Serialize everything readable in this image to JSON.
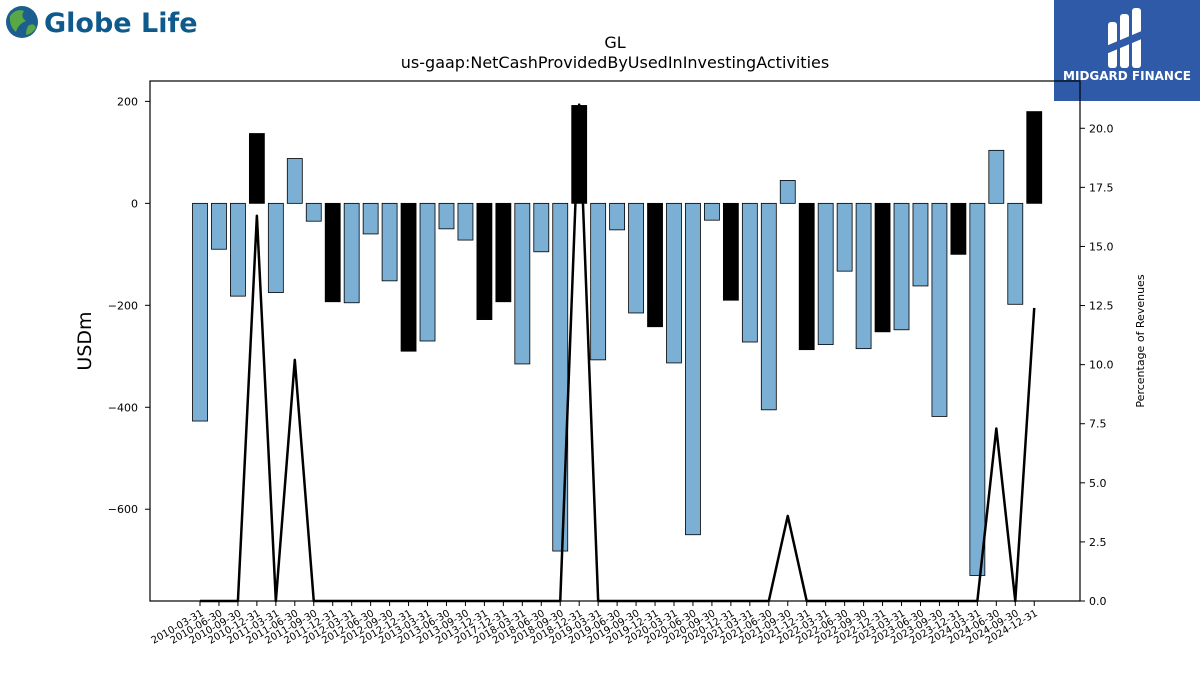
{
  "brand": {
    "company_name": "Globe Life",
    "watermark_text": "MIDGARD FINANCE",
    "company_color": "#0f5a8c",
    "watermark_bg": "#2f5aa8"
  },
  "chart_data": {
    "type": "bar",
    "title": "GL",
    "subtitle": "us-gaap:NetCashProvidedByUsedInInvestingActivities",
    "ylabel": "USDm",
    "y2label": "Percentage of Revenues",
    "ylim": [
      -780,
      240
    ],
    "y2lim": [
      0,
      22.0
    ],
    "yticks": [
      -600,
      -400,
      -200,
      0,
      200
    ],
    "y2ticks": [
      "0.0",
      "2.5",
      "5.0",
      "7.5",
      "10.0",
      "12.5",
      "15.0",
      "17.5",
      "20.0"
    ],
    "colors": {
      "quarterly": "#7bafd4",
      "annual": "#000000",
      "line": "#000000"
    },
    "categories": [
      "2010-03-31",
      "2010-06-30",
      "2010-09-30",
      "2010-12-31",
      "2011-03-31",
      "2011-06-30",
      "2011-09-30",
      "2011-12-31",
      "2012-03-31",
      "2012-06-30",
      "2012-09-30",
      "2012-12-31",
      "2013-03-31",
      "2013-06-30",
      "2013-09-30",
      "2013-12-31",
      "2017-12-31",
      "2018-03-31",
      "2018-06-30",
      "2018-09-30",
      "2018-12-31",
      "2019-03-31",
      "2019-06-30",
      "2019-09-30",
      "2019-12-31",
      "2020-03-31",
      "2020-06-30",
      "2020-09-30",
      "2020-12-31",
      "2021-03-31",
      "2021-06-30",
      "2021-09-30",
      "2021-12-31",
      "2022-03-31",
      "2022-06-30",
      "2022-09-30",
      "2022-12-31",
      "2023-03-31",
      "2023-06-30",
      "2023-09-30",
      "2023-12-31",
      "2024-03-31",
      "2024-06-30",
      "2024-09-30",
      "2024-12-31"
    ],
    "values": [
      -427,
      -90,
      -182,
      137,
      -175,
      88,
      -35,
      -193,
      -195,
      -60,
      -152,
      -290,
      -270,
      -50,
      -72,
      -228,
      -193,
      -315,
      -95,
      -682,
      192,
      -307,
      -52,
      -215,
      -242,
      -313,
      -650,
      -33,
      -190,
      -272,
      -405,
      45,
      -287,
      -277,
      -133,
      -285,
      -252,
      -248,
      -162,
      -418,
      -100,
      -730,
      104,
      -198,
      180
    ],
    "annual": [
      false,
      false,
      false,
      true,
      false,
      false,
      false,
      true,
      false,
      false,
      false,
      true,
      false,
      false,
      false,
      true,
      true,
      false,
      false,
      false,
      true,
      false,
      false,
      false,
      true,
      false,
      false,
      false,
      true,
      false,
      false,
      false,
      true,
      false,
      false,
      false,
      true,
      false,
      false,
      false,
      true,
      false,
      false,
      false,
      true
    ],
    "line_series": {
      "name": "Percentage of Revenues",
      "values": [
        0,
        0,
        0,
        16.3,
        0,
        10.2,
        0,
        0,
        0,
        0,
        0,
        0,
        0,
        0,
        0,
        0,
        0,
        0,
        0,
        0,
        21.0,
        0,
        0,
        0,
        0,
        0,
        0,
        0,
        0,
        0,
        0,
        3.6,
        0,
        0,
        0,
        0,
        0,
        0,
        0,
        0,
        0,
        0,
        7.3,
        0,
        12.4
      ]
    }
  }
}
